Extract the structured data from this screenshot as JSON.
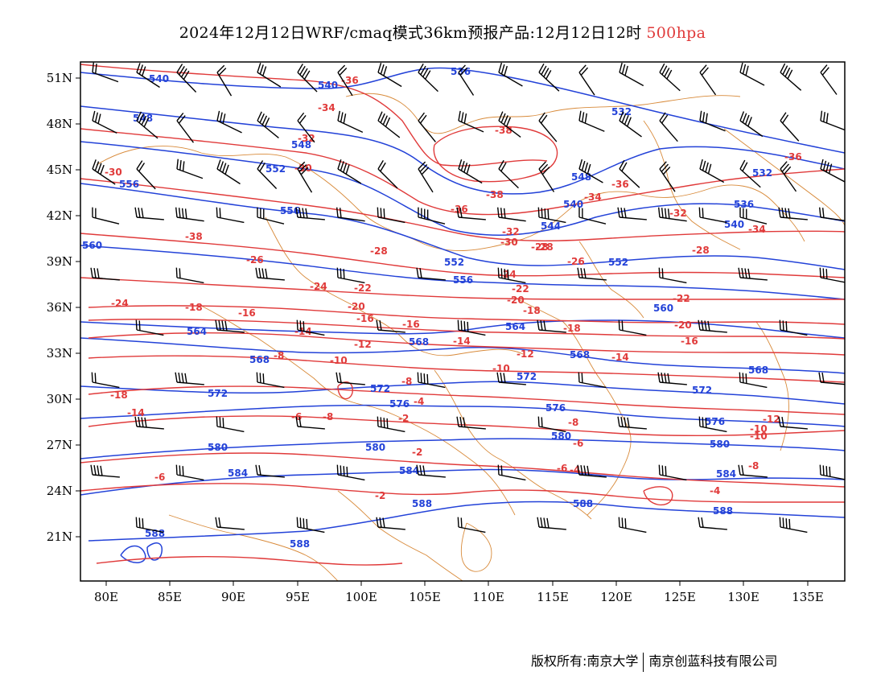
{
  "title": {
    "main": "2024年12月12日WRF/cmaq模式36km预报产品:12月12日12时",
    "level": "500hpa"
  },
  "axes": {
    "lat_ticks": [
      "51N",
      "48N",
      "45N",
      "42N",
      "39N",
      "36N",
      "33N",
      "30N",
      "27N",
      "24N",
      "21N"
    ],
    "lon_ticks": [
      "80E",
      "85E",
      "90E",
      "95E",
      "100E",
      "105E",
      "110E",
      "115E",
      "120E",
      "125E",
      "130E",
      "135E"
    ]
  },
  "contours": {
    "height_labels": [
      "540",
      "536",
      "540",
      "548",
      "532",
      "548",
      "552",
      "556",
      "532",
      "536",
      "556",
      "544",
      "540",
      "540",
      "560",
      "552",
      "552",
      "548",
      "556",
      "560",
      "564",
      "568",
      "564",
      "568",
      "568",
      "568",
      "572",
      "572",
      "572",
      "572",
      "576",
      "576",
      "576",
      "580",
      "580",
      "580",
      "580",
      "584",
      "584",
      "584",
      "588",
      "588",
      "588",
      "588",
      "588"
    ],
    "temperature_labels": [
      "-36",
      "-34",
      "-32",
      "-38",
      "-36",
      "-38",
      "-34",
      "-36",
      "-30",
      "-30",
      "-36",
      "-38",
      "-32",
      "-28",
      "-26",
      "-28",
      "-32",
      "-34",
      "-28",
      "-30",
      "-28",
      "-26",
      "-24",
      "-22",
      "-24",
      "-22",
      "-24",
      "-18",
      "-16",
      "-20",
      "-18",
      "-20",
      "-22",
      "-14",
      "-16",
      "-18",
      "-12",
      "-20",
      "-16",
      "-8",
      "-10",
      "-14",
      "-12",
      "-14",
      "-16",
      "-10",
      "-18",
      "-14",
      "-8",
      "-6",
      "-8",
      "-10",
      "-8",
      "-2",
      "-4",
      "-6",
      "-6",
      "-8",
      "-4",
      "-2",
      "-6",
      "-4",
      "-2",
      "-12",
      "-10"
    ]
  },
  "footer": {
    "owner": "版权所有:南京大学",
    "company": "南京创蓝科技有限公司"
  },
  "colors": {
    "height_contour": "#2342d8",
    "temperature_contour": "#e03a3a",
    "border": "#d88a3a",
    "level_label": "#e03a3a"
  }
}
